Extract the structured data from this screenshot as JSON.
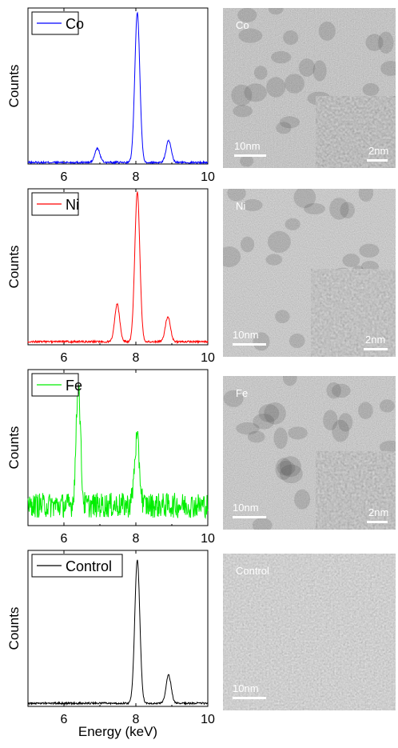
{
  "chart_data": [
    {
      "type": "line",
      "title": "",
      "xlabel": "",
      "ylabel": "Counts",
      "xlim": [
        5,
        10
      ],
      "xticks": [
        6,
        8,
        10
      ],
      "tick_labels": [
        "6",
        "8",
        "10"
      ],
      "legend_position": "top-left",
      "series": [
        {
          "name": "Co",
          "color": "#0000ff",
          "peaks": [
            {
              "x": 6.93,
              "height": 0.09,
              "width": 0.07
            },
            {
              "x": 8.04,
              "height": 0.96,
              "width": 0.07
            },
            {
              "x": 8.91,
              "height": 0.14,
              "width": 0.07
            }
          ],
          "baseline": 0.01,
          "noise": 0.012
        }
      ]
    },
    {
      "type": "line",
      "title": "",
      "xlabel": "",
      "ylabel": "Counts",
      "xlim": [
        5,
        10
      ],
      "xticks": [
        6,
        8,
        10
      ],
      "tick_labels": [
        "6",
        "8",
        "10"
      ],
      "legend_position": "top-left",
      "series": [
        {
          "name": "Ni",
          "color": "#ff0000",
          "peaks": [
            {
              "x": 7.48,
              "height": 0.24,
              "width": 0.07
            },
            {
              "x": 8.04,
              "height": 0.96,
              "width": 0.07
            },
            {
              "x": 8.89,
              "height": 0.16,
              "width": 0.07
            }
          ],
          "baseline": 0.02,
          "noise": 0.012
        }
      ]
    },
    {
      "type": "line",
      "title": "",
      "xlabel": "",
      "ylabel": "Counts",
      "xlim": [
        5,
        10
      ],
      "xticks": [
        6,
        8,
        10
      ],
      "tick_labels": [
        "6",
        "8",
        "10"
      ],
      "legend_position": "top-left",
      "series": [
        {
          "name": "Fe",
          "color": "#00ee00",
          "peaks": [
            {
              "x": 6.4,
              "height": 0.78,
              "width": 0.06
            },
            {
              "x": 8.03,
              "height": 0.42,
              "width": 0.07
            }
          ],
          "baseline": 0.13,
          "noise": 0.08
        }
      ]
    },
    {
      "type": "line",
      "title": "",
      "xlabel": "Energy (keV)",
      "ylabel": "Counts",
      "xlim": [
        5,
        10
      ],
      "xticks": [
        6,
        8,
        10
      ],
      "tick_labels": [
        "6",
        "8",
        "10"
      ],
      "legend_position": "top-left",
      "series": [
        {
          "name": "Control",
          "color": "#000000",
          "peaks": [
            {
              "x": 8.04,
              "height": 0.92,
              "width": 0.07
            },
            {
              "x": 8.91,
              "height": 0.18,
              "width": 0.07
            }
          ],
          "baseline": 0.02,
          "noise": 0.012
        }
      ]
    }
  ],
  "tem_images": [
    {
      "label": "Co",
      "scale_main": "10nm",
      "scale_inset": "2nm",
      "has_inset": true,
      "tone": 0.55
    },
    {
      "label": "Ni",
      "scale_main": "10nm",
      "scale_inset": "2nm",
      "has_inset": true,
      "tone": 0.58
    },
    {
      "label": "Fe",
      "scale_main": "10nm",
      "scale_inset": "2nm",
      "has_inset": true,
      "tone": 0.57
    },
    {
      "label": "Control",
      "scale_main": "10nm",
      "scale_inset": "",
      "has_inset": false,
      "tone": 0.62
    }
  ],
  "x_axis_title": "Energy (keV)"
}
